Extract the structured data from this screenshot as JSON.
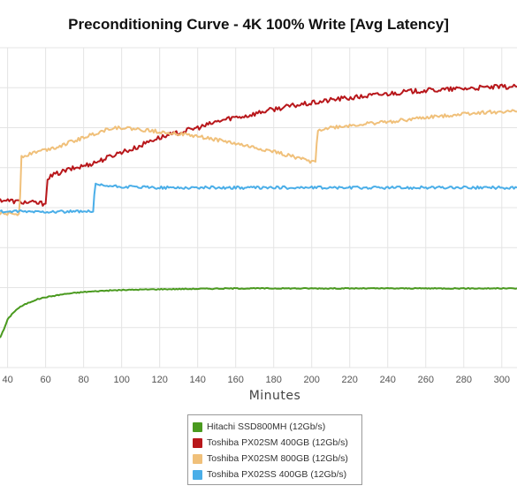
{
  "chart_data": {
    "type": "line",
    "title": "Preconditioning Curve - 4K 100% Write [Avg Latency]",
    "xlabel": "Minutes",
    "ylabel": "",
    "x_ticks": [
      40,
      60,
      80,
      100,
      120,
      140,
      160,
      180,
      200,
      220,
      240,
      260,
      280,
      300
    ],
    "xlim": [
      36,
      308
    ],
    "ylim": [
      0,
      8
    ],
    "grid": true,
    "legend_position": "bottom",
    "series": [
      {
        "name": "Hitachi SSD800MH (12Gb/s)",
        "color": "#4a9a1f",
        "points": [
          [
            36,
            0.75
          ],
          [
            38,
            0.95
          ],
          [
            40,
            1.2
          ],
          [
            43,
            1.38
          ],
          [
            46,
            1.5
          ],
          [
            50,
            1.6
          ],
          [
            55,
            1.7
          ],
          [
            60,
            1.76
          ],
          [
            70,
            1.84
          ],
          [
            80,
            1.89
          ],
          [
            90,
            1.92
          ],
          [
            100,
            1.94
          ],
          [
            120,
            1.96
          ],
          [
            140,
            1.97
          ],
          [
            160,
            1.98
          ],
          [
            180,
            1.98
          ],
          [
            200,
            1.98
          ],
          [
            240,
            1.98
          ],
          [
            280,
            1.98
          ],
          [
            308,
            1.98
          ]
        ]
      },
      {
        "name": "Toshiba PX02SM 400GB (12Gb/s)",
        "color": "#b8171b",
        "points": [
          [
            36,
            4.2
          ],
          [
            45,
            4.15
          ],
          [
            54,
            4.12
          ],
          [
            60,
            4.1
          ],
          [
            60.5,
            4.4
          ],
          [
            61,
            4.75
          ],
          [
            66,
            4.85
          ],
          [
            72,
            4.95
          ],
          [
            78,
            5.02
          ],
          [
            84,
            5.1
          ],
          [
            90,
            5.2
          ],
          [
            96,
            5.32
          ],
          [
            100,
            5.4
          ],
          [
            105,
            5.45
          ],
          [
            110,
            5.55
          ],
          [
            115,
            5.68
          ],
          [
            120,
            5.75
          ],
          [
            128,
            5.85
          ],
          [
            136,
            5.95
          ],
          [
            144,
            6.05
          ],
          [
            150,
            6.15
          ],
          [
            158,
            6.25
          ],
          [
            166,
            6.3
          ],
          [
            174,
            6.4
          ],
          [
            182,
            6.48
          ],
          [
            190,
            6.55
          ],
          [
            198,
            6.6
          ],
          [
            206,
            6.66
          ],
          [
            214,
            6.72
          ],
          [
            222,
            6.75
          ],
          [
            230,
            6.8
          ],
          [
            240,
            6.85
          ],
          [
            250,
            6.9
          ],
          [
            260,
            6.93
          ],
          [
            270,
            6.95
          ],
          [
            280,
            6.98
          ],
          [
            290,
            7.0
          ],
          [
            300,
            7.02
          ],
          [
            308,
            7.02
          ]
        ]
      },
      {
        "name": "Toshiba PX02SM 800GB (12Gb/s)",
        "color": "#f0c07a",
        "points": [
          [
            36,
            3.85
          ],
          [
            46,
            3.85
          ],
          [
            46.6,
            4.3
          ],
          [
            47.3,
            5.28
          ],
          [
            50,
            5.32
          ],
          [
            55,
            5.4
          ],
          [
            60,
            5.45
          ],
          [
            66,
            5.52
          ],
          [
            72,
            5.62
          ],
          [
            78,
            5.72
          ],
          [
            84,
            5.82
          ],
          [
            90,
            5.92
          ],
          [
            95,
            6.0
          ],
          [
            100,
            6.0
          ],
          [
            110,
            5.95
          ],
          [
            120,
            5.9
          ],
          [
            130,
            5.85
          ],
          [
            140,
            5.78
          ],
          [
            150,
            5.7
          ],
          [
            160,
            5.6
          ],
          [
            170,
            5.5
          ],
          [
            180,
            5.4
          ],
          [
            190,
            5.28
          ],
          [
            196,
            5.2
          ],
          [
            200,
            5.15
          ],
          [
            202,
            5.15
          ],
          [
            202.6,
            5.6
          ],
          [
            203.3,
            5.95
          ],
          [
            210,
            6.0
          ],
          [
            220,
            6.05
          ],
          [
            230,
            6.1
          ],
          [
            240,
            6.15
          ],
          [
            250,
            6.2
          ],
          [
            260,
            6.25
          ],
          [
            270,
            6.3
          ],
          [
            280,
            6.35
          ],
          [
            290,
            6.38
          ],
          [
            300,
            6.4
          ],
          [
            308,
            6.4
          ]
        ]
      },
      {
        "name": "Toshiba PX02SS 400GB (12Gb/s)",
        "color": "#4aaee8",
        "points": [
          [
            36,
            3.9
          ],
          [
            50,
            3.9
          ],
          [
            60,
            3.9
          ],
          [
            70,
            3.9
          ],
          [
            80,
            3.9
          ],
          [
            85,
            3.9
          ],
          [
            85.6,
            4.3
          ],
          [
            86.3,
            4.57
          ],
          [
            90,
            4.55
          ],
          [
            100,
            4.52
          ],
          [
            120,
            4.5
          ],
          [
            140,
            4.5
          ],
          [
            160,
            4.5
          ],
          [
            180,
            4.5
          ],
          [
            200,
            4.5
          ],
          [
            220,
            4.5
          ],
          [
            240,
            4.5
          ],
          [
            260,
            4.5
          ],
          [
            280,
            4.5
          ],
          [
            300,
            4.5
          ],
          [
            308,
            4.5
          ]
        ]
      }
    ]
  }
}
